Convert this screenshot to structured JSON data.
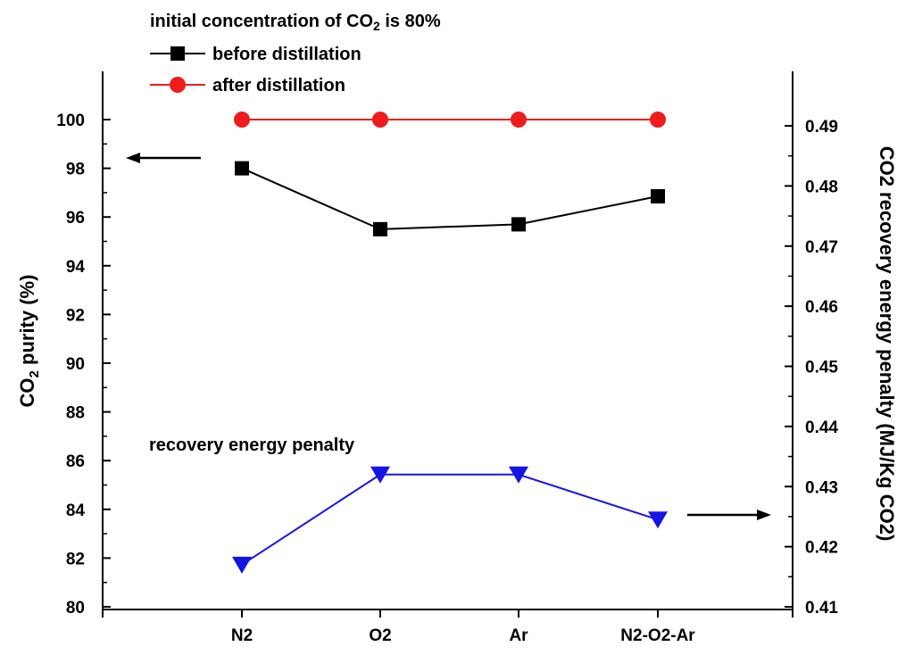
{
  "chart_data": {
    "type": "line",
    "categories": [
      "N2",
      "O2",
      "Ar",
      "N2-O2-Ar"
    ],
    "title": "initial concentration of CO2 is 80%",
    "title_parts": {
      "before": "initial concentration of CO",
      "sub": "2",
      "after": " is 80%"
    },
    "left_axis": {
      "label": "CO2 purity (%)",
      "label_parts": {
        "before": "CO",
        "sub": "2",
        "after": " purity (%)"
      },
      "ylim": [
        80,
        100
      ],
      "ticks": [
        "80",
        "82",
        "84",
        "86",
        "88",
        "90",
        "92",
        "94",
        "96",
        "98",
        "100"
      ]
    },
    "right_axis": {
      "label": "CO2 recovery energy penalty (MJ/Kg CO2)",
      "ylim": [
        0.41,
        0.49
      ],
      "ticks": [
        "0.41",
        "0.42",
        "0.43",
        "0.44",
        "0.45",
        "0.46",
        "0.47",
        "0.48",
        "0.49"
      ]
    },
    "series": [
      {
        "name": "before distillation",
        "axis": "left",
        "values": [
          98.0,
          95.5,
          95.7,
          96.85
        ],
        "color": "#000000",
        "marker": "square"
      },
      {
        "name": "after distillation",
        "axis": "left",
        "values": [
          100.0,
          100.0,
          100.0,
          100.0
        ],
        "color": "#ee1c1c",
        "marker": "circle"
      },
      {
        "name": "recovery energy penalty",
        "axis": "right",
        "values": [
          0.417,
          0.432,
          0.432,
          0.4245
        ],
        "color": "#1414e6",
        "marker": "triangle-down"
      }
    ],
    "legend_position": "top-left",
    "grid": false,
    "annotations": {
      "left_arrow": "points to left axis",
      "right_arrow": "points to right axis"
    }
  }
}
